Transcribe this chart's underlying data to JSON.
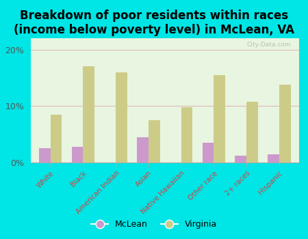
{
  "title": "Breakdown of poor residents within races\n(income below poverty level) in McLean, VA",
  "categories": [
    "White",
    "Black",
    "American Indian",
    "Asian",
    "Native Hawaiian",
    "Other race",
    "2+ races",
    "Hispanic"
  ],
  "mclean_values": [
    2.5,
    2.8,
    0.0,
    4.5,
    0.0,
    3.5,
    1.2,
    1.5
  ],
  "virginia_values": [
    8.5,
    17.0,
    16.0,
    7.5,
    9.8,
    15.5,
    10.8,
    13.8
  ],
  "mclean_color": "#cc99cc",
  "virginia_color": "#cccc88",
  "background_outer": "#00e5e5",
  "background_plot": "#e8f5e0",
  "title_fontsize": 12,
  "ylim": [
    0,
    22
  ],
  "yticks": [
    0,
    10,
    20
  ],
  "ytick_labels": [
    "0%",
    "10%",
    "20%"
  ],
  "watermark": "City-Data.com",
  "legend_mclean": "McLean",
  "legend_virginia": "Virginia",
  "bar_width": 0.35
}
